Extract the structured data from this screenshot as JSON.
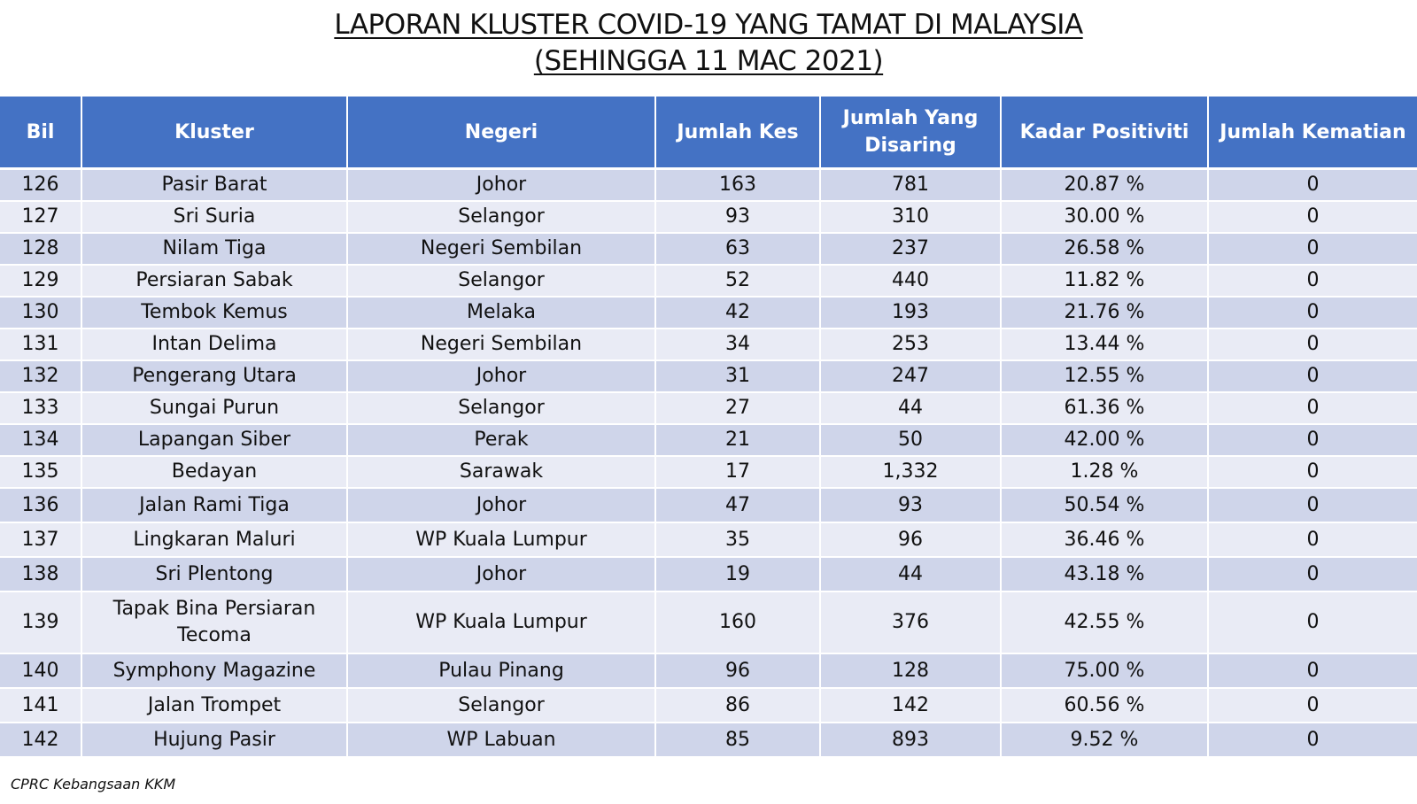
{
  "title": {
    "line1": "LAPORAN KLUSTER COVID-19 YANG TAMAT DI MALAYSIA",
    "line2": "(SEHINGGA  11 MAC 2021)"
  },
  "table": {
    "headers": [
      "Bil",
      "Kluster",
      "Negeri",
      "Jumlah Kes",
      "Jumlah Yang Disaring",
      "Kadar Positiviti",
      "Jumlah Kematian"
    ],
    "rows": [
      [
        "126",
        "Pasir Barat",
        "Johor",
        "163",
        "781",
        "20.87 %",
        "0"
      ],
      [
        "127",
        "Sri Suria",
        "Selangor",
        "93",
        "310",
        "30.00 %",
        "0"
      ],
      [
        "128",
        "Nilam Tiga",
        "Negeri Sembilan",
        "63",
        "237",
        "26.58 %",
        "0"
      ],
      [
        "129",
        "Persiaran Sabak",
        "Selangor",
        "52",
        "440",
        "11.82 %",
        "0"
      ],
      [
        "130",
        "Tembok Kemus",
        "Melaka",
        "42",
        "193",
        "21.76 %",
        "0"
      ],
      [
        "131",
        "Intan Delima",
        "Negeri Sembilan",
        "34",
        "253",
        "13.44 %",
        "0"
      ],
      [
        "132",
        "Pengerang Utara",
        "Johor",
        "31",
        "247",
        "12.55 %",
        "0"
      ],
      [
        "133",
        "Sungai Purun",
        "Selangor",
        "27",
        "44",
        "61.36 %",
        "0"
      ],
      [
        "134",
        "Lapangan Siber",
        "Perak",
        "21",
        "50",
        "42.00 %",
        "0"
      ],
      [
        "135",
        "Bedayan",
        "Sarawak",
        "17",
        "1,332",
        "1.28 %",
        "0"
      ],
      [
        "136",
        "Jalan Rami Tiga",
        "Johor",
        "47",
        "93",
        "50.54 %",
        "0"
      ],
      [
        "137",
        "Lingkaran Maluri",
        "WP Kuala Lumpur",
        "35",
        "96",
        "36.46 %",
        "0"
      ],
      [
        "138",
        "Sri Plentong",
        "Johor",
        "19",
        "44",
        "43.18 %",
        "0"
      ],
      [
        "139",
        "Tapak Bina Persiaran Tecoma",
        "WP Kuala Lumpur",
        "160",
        "376",
        "42.55 %",
        "0"
      ],
      [
        "140",
        "Symphony Magazine",
        "Pulau Pinang",
        "96",
        "128",
        "75.00 %",
        "0"
      ],
      [
        "141",
        "Jalan Trompet",
        "Selangor",
        "86",
        "142",
        "60.56 %",
        "0"
      ],
      [
        "142",
        "Hujung Pasir",
        "WP Labuan",
        "85",
        "893",
        "9.52 %",
        "0"
      ]
    ]
  },
  "source": "CPRC Kebangsaan KKM"
}
